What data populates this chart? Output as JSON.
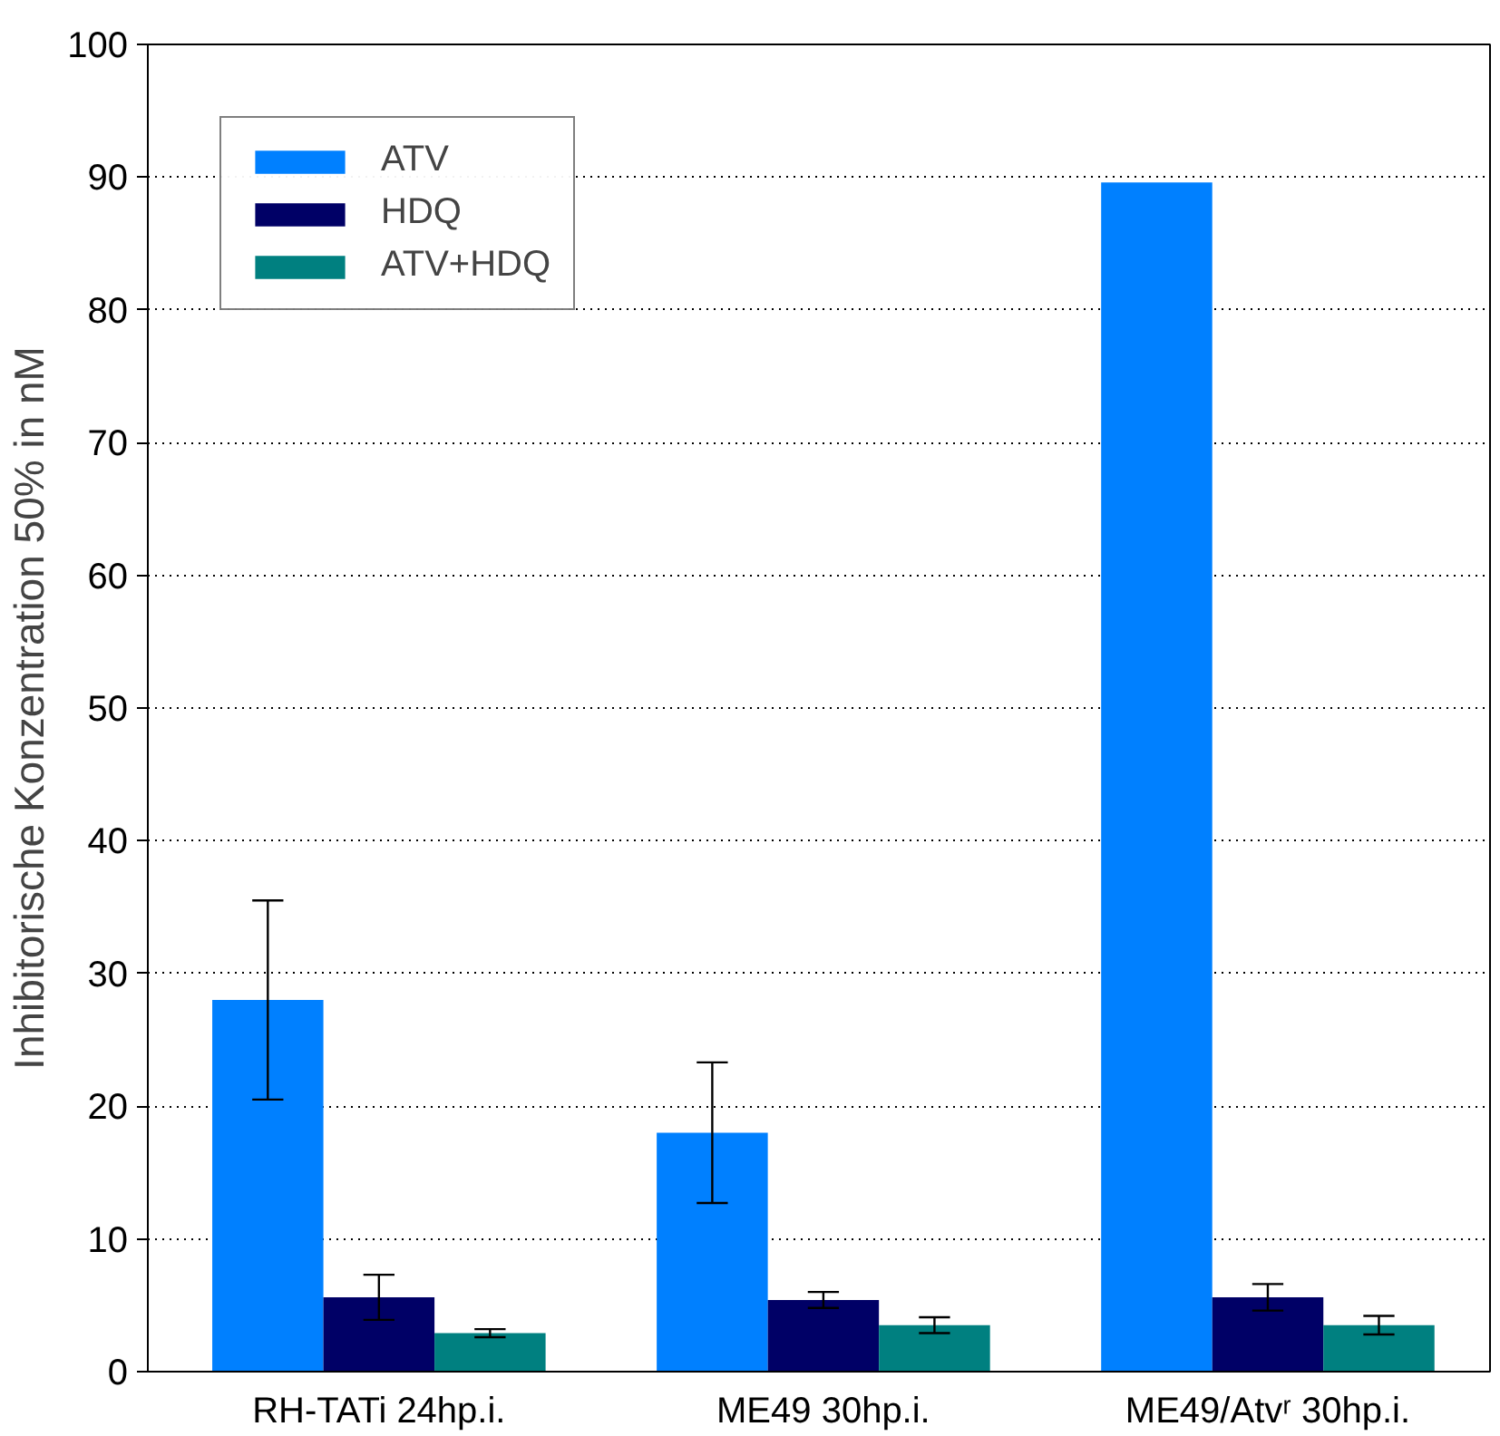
{
  "chart_data": {
    "type": "bar",
    "ylabel": "Inhibitorische Konzentration 50% in nM",
    "categories": [
      "RH-TATi 24hp.i.",
      "ME49 30hp.i.",
      "ME49/Atvʳ 30hp.i."
    ],
    "series": [
      {
        "name": "ATV",
        "color": "#0080ff",
        "values": [
          28,
          18,
          89.6
        ],
        "errors": [
          7.5,
          5.3,
          null
        ]
      },
      {
        "name": "HDQ",
        "color": "#000066",
        "values": [
          5.6,
          5.4,
          5.6
        ],
        "errors": [
          1.7,
          0.6,
          1.0
        ]
      },
      {
        "name": "ATV+HDQ",
        "color": "#008080",
        "values": [
          2.9,
          3.5,
          3.5
        ],
        "errors": [
          0.3,
          0.6,
          0.7
        ]
      }
    ],
    "ylim": [
      0,
      100
    ],
    "yticks": [
      0,
      10,
      20,
      30,
      40,
      50,
      60,
      70,
      80,
      90,
      100
    ],
    "grid": "y",
    "legend": "top left"
  }
}
